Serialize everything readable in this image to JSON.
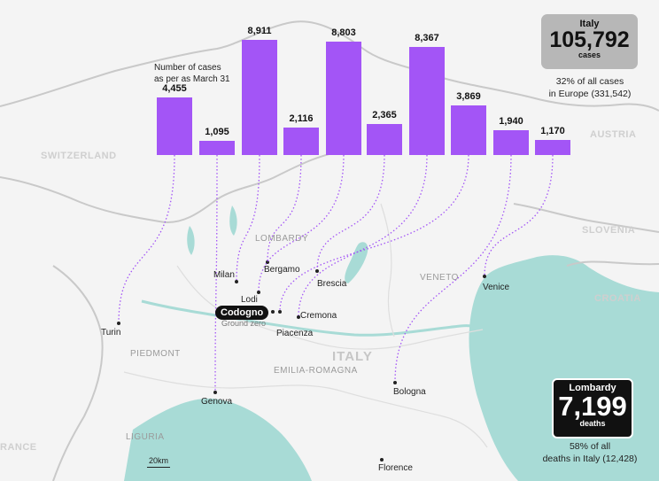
{
  "colors": {
    "bar": "#a355f6",
    "sea": "#a8dbd6",
    "land": "#f4f4f4",
    "leader": "#a355f6"
  },
  "annotations": {
    "cases_note": [
      "Number of cases",
      "as per as March 31"
    ],
    "italy": {
      "title": "Italy",
      "value": "105,792",
      "unit": "cases",
      "note": [
        "32% of all cases",
        "in Europe (331,542)"
      ]
    },
    "lombardy": {
      "title": "Lombardy",
      "value": "7,199",
      "unit": "deaths",
      "note": [
        "58% of all",
        "deaths in Italy (12,428)"
      ]
    },
    "codogno": {
      "label": "Codogno",
      "sub": "Ground zero"
    },
    "scale": "20km"
  },
  "map_labels": {
    "countries": [
      "SWITZERLAND",
      "AUSTRIA",
      "SLOVENIA",
      "CROATIA",
      "RANCE"
    ],
    "regions": [
      "LOMBARDY",
      "VENETO",
      "PIEDMONT",
      "EMILIA-ROMAGNA",
      "LIGURIA"
    ],
    "italy": "ITALY",
    "other_cities": [
      "Florence"
    ]
  },
  "chart_data": {
    "type": "bar",
    "categories": [
      "Turin",
      "Genova",
      "Milan",
      "Bergamo",
      "Lodi",
      "Brescia",
      "Cremona",
      "Piacenza",
      "Bologna",
      "Venice"
    ],
    "values": [
      4455,
      1095,
      8911,
      2116,
      8803,
      2365,
      8367,
      3869,
      1940,
      1170
    ],
    "value_labels": [
      "4,455",
      "1,095",
      "8,911",
      "2,116",
      "8,803",
      "2,365",
      "8,367",
      "3,869",
      "1,940",
      "1,170"
    ],
    "title": "",
    "xlabel": "",
    "ylabel": "",
    "ylim": [
      0,
      8911
    ]
  }
}
